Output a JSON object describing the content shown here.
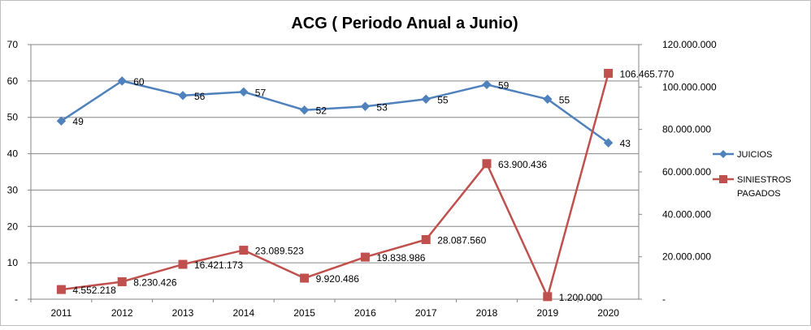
{
  "chart_data": {
    "type": "line",
    "title": "ACG ( Periodo Anual a Junio)",
    "categories": [
      "2011",
      "2012",
      "2013",
      "2014",
      "2015",
      "2016",
      "2017",
      "2018",
      "2019",
      "2020"
    ],
    "y_left": {
      "ylim": [
        0,
        70
      ],
      "ticks": [
        {
          "value": 0,
          "label": "-"
        },
        {
          "value": 10,
          "label": "10"
        },
        {
          "value": 20,
          "label": "20"
        },
        {
          "value": 30,
          "label": "30"
        },
        {
          "value": 40,
          "label": "40"
        },
        {
          "value": 50,
          "label": "50"
        },
        {
          "value": 60,
          "label": "60"
        },
        {
          "value": 70,
          "label": "70"
        }
      ]
    },
    "y_right": {
      "ylim": [
        0,
        120000000
      ],
      "ticks": [
        {
          "value": 0,
          "label": "-"
        },
        {
          "value": 20000000,
          "label": "20.000.000"
        },
        {
          "value": 40000000,
          "label": "40.000.000"
        },
        {
          "value": 60000000,
          "label": "60.000.000"
        },
        {
          "value": 80000000,
          "label": "80.000.000"
        },
        {
          "value": 100000000,
          "label": "100.000.000"
        },
        {
          "value": 120000000,
          "label": "120.000.000"
        }
      ]
    },
    "grid": true,
    "legend_position": "right",
    "series": [
      {
        "name": "JUICIOS",
        "axis": "left",
        "color": "#4F81BD",
        "marker": "diamond",
        "values": [
          49,
          60,
          56,
          57,
          52,
          53,
          55,
          59,
          55,
          43
        ],
        "labels": [
          "49",
          "60",
          "56",
          "57",
          "52",
          "53",
          "55",
          "59",
          "55",
          "43"
        ]
      },
      {
        "name": "SINIESTROS PAGADOS",
        "legend_lines": [
          "SINIESTROS",
          "PAGADOS"
        ],
        "axis": "right",
        "color": "#C0504D",
        "marker": "square",
        "values": [
          4552218,
          8230426,
          16421173,
          23089523,
          9920486,
          19838986,
          28087560,
          63900436,
          1200000,
          106465770
        ],
        "labels": [
          "4.552.218",
          "8.230.426",
          "16.421.173",
          "23.089.523",
          "9.920.486",
          "19.838.986",
          "28.087.560",
          "63.900.436",
          "1.200.000",
          "106.465.770"
        ]
      }
    ]
  }
}
